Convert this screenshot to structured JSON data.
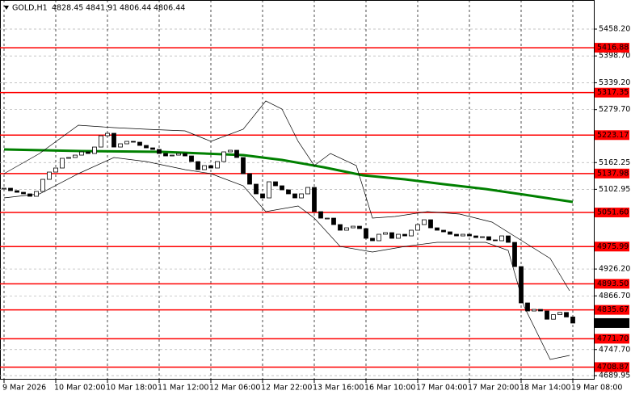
{
  "header": {
    "symbol": "GOLD,H1",
    "ohlc": [
      4828.45,
      4841.91,
      4806.44,
      4806.44
    ]
  },
  "chart_data": {
    "type": "candlestick",
    "x": [
      0,
      2,
      4,
      6,
      8,
      10,
      12,
      14,
      16,
      18,
      20,
      22,
      24,
      26,
      28,
      30,
      32,
      34,
      36,
      38,
      40,
      42,
      44,
      46,
      48,
      50,
      52,
      54,
      56,
      58,
      60,
      62,
      64,
      66,
      68,
      70,
      72,
      74,
      76,
      78,
      80,
      82,
      84,
      86,
      88,
      90,
      92,
      94,
      96,
      98,
      100,
      102,
      104,
      106,
      108,
      110,
      112,
      114,
      116,
      118,
      120,
      122,
      124,
      126,
      128,
      130,
      132,
      134,
      136,
      138,
      140,
      142,
      144,
      146,
      148,
      150,
      152,
      154,
      156,
      158,
      160,
      162,
      164,
      166,
      168,
      170,
      172,
      174,
      176
    ],
    "close": [
      5105.4,
      5100.0,
      5096.4,
      5092.9,
      5087.5,
      5098.2,
      5125.1,
      5141.2,
      5150.2,
      5171.7,
      5173.5,
      5178.8,
      5186.0,
      5182.4,
      5196.7,
      5221.8,
      5227.2,
      5196.7,
      5203.9,
      5209.3,
      5207.5,
      5200.3,
      5194.9,
      5191.4,
      5182.4,
      5177.0,
      5178.8,
      5182.4,
      5177.0,
      5164.5,
      5146.6,
      5155.5,
      5150.2,
      5164.5,
      5186.0,
      5189.6,
      5173.5,
      5137.6,
      5114.4,
      5092.9,
      5083.9,
      5119.7,
      5110.8,
      5101.8,
      5092.9,
      5083.9,
      5092.9,
      5107.2,
      5053.5,
      5039.1,
      5039.1,
      5024.8,
      5012.3,
      5017.6,
      5021.2,
      5015.9,
      4994.4,
      4989.0,
      5003.3,
      5006.9,
      4994.4,
      5003.3,
      4999.7,
      5012.3,
      5024.8,
      5035.5,
      5017.6,
      5012.3,
      5008.7,
      5003.3,
      4999.7,
      5003.3,
      4999.7,
      4996.1,
      4997.9,
      4990.8,
      4989.0,
      4999.7,
      4985.4,
      4931.7,
      4851.1,
      4833.2,
      4836.7,
      4833.2,
      4815,
      4825,
      4830,
      4820,
      4806.44
    ],
    "candle_colors": {
      "up": "#ffffff",
      "down": "#000000",
      "outline": "#000000"
    },
    "lines": [
      {
        "color": "#008000",
        "width": 3,
        "x": [
          0,
          24,
          49,
          74,
          86,
          99,
          111,
          124,
          136,
          149,
          161,
          176
        ],
        "values": [
          5191.4,
          5187.8,
          5186.0,
          5178.8,
          5168.1,
          5151.9,
          5134.1,
          5125.1,
          5114.4,
          5103.6,
          5091.1,
          5074.9
        ]
      },
      {
        "color": "#000000",
        "width": 0.7,
        "x": [
          0,
          11,
          23,
          34,
          44,
          56,
          64,
          74,
          81,
          86,
          91,
          96,
          101,
          109,
          114,
          121,
          131,
          141,
          151,
          159,
          169,
          175
        ],
        "values": [
          5137.6,
          5182.4,
          5245.1,
          5239.7,
          5236.1,
          5232.6,
          5209.3,
          5236.1,
          5298.8,
          5280.9,
          5209.3,
          5155.5,
          5182.4,
          5155.5,
          5039.1,
          5042.7,
          5053.5,
          5048.1,
          5030.2,
          4994.4,
          4949.6,
          4878.0
        ]
      },
      {
        "color": "#000000",
        "width": 0.7,
        "x": [
          0,
          11,
          23,
          34,
          44,
          56,
          64,
          74,
          81,
          91,
          96,
          104,
          114,
          124,
          134,
          149,
          156,
          161,
          169,
          175
        ],
        "values": [
          5083.9,
          5092.9,
          5137.6,
          5173.5,
          5164.5,
          5146.6,
          5137.6,
          5110.8,
          5053.5,
          5066.0,
          5039.1,
          4976.4,
          4963.9,
          4976.4,
          4985.4,
          4985.4,
          4967.5,
          4842.1,
          4725.7,
          4734.7
        ]
      }
    ],
    "levels": [
      5416.88,
      5317.35,
      5223.17,
      5137.98,
      {
        "value": 5051.6,
        "label": "5051.60"
      },
      4975.99,
      {
        "value": 4893.5,
        "label": "4893.50"
      },
      4835.67,
      {
        "value": 4771.7,
        "label": "4771.70"
      },
      4708.87
    ],
    "level_color": "#ff0000",
    "current_price": 4806.44,
    "xlim": [
      -1.25,
      182.5
    ],
    "ylim": [
      4681,
      5522.7
    ],
    "xticks": [
      {
        "value": 0,
        "label": "9 Mar 2026"
      },
      {
        "value": 16,
        "label": "10 Mar 02:00"
      },
      {
        "value": 32,
        "label": "10 Mar 18:00"
      },
      {
        "value": 48,
        "label": "11 Mar 12:00"
      },
      {
        "value": 64,
        "label": "12 Mar 06:00"
      },
      {
        "value": 80,
        "label": "12 Mar 22:00"
      },
      {
        "value": 96,
        "label": "13 Mar 16:00"
      },
      {
        "value": 112,
        "label": "16 Mar 10:00"
      },
      {
        "value": 128,
        "label": "17 Mar 04:00"
      },
      {
        "value": 144,
        "label": "17 Mar 20:00"
      },
      {
        "value": 160,
        "label": "18 Mar 14:00"
      },
      {
        "value": 176,
        "label": "19 Mar 08:00"
      }
    ],
    "yticks": [
      {
        "value": 5458.2,
        "label": "5458.20"
      },
      {
        "value": 5398.7,
        "label": "5398.70"
      },
      {
        "value": 5339.2,
        "label": "5339.20"
      },
      {
        "value": 5279.7,
        "label": "5279.70"
      },
      5162.25,
      5102.95,
      {
        "value": 4926.2,
        "label": "4926.20"
      },
      {
        "value": 4866.7,
        "label": "4866.70"
      },
      {
        "value": 4747.7,
        "label": "4747.70"
      },
      4689.95
    ],
    "grid": true
  }
}
